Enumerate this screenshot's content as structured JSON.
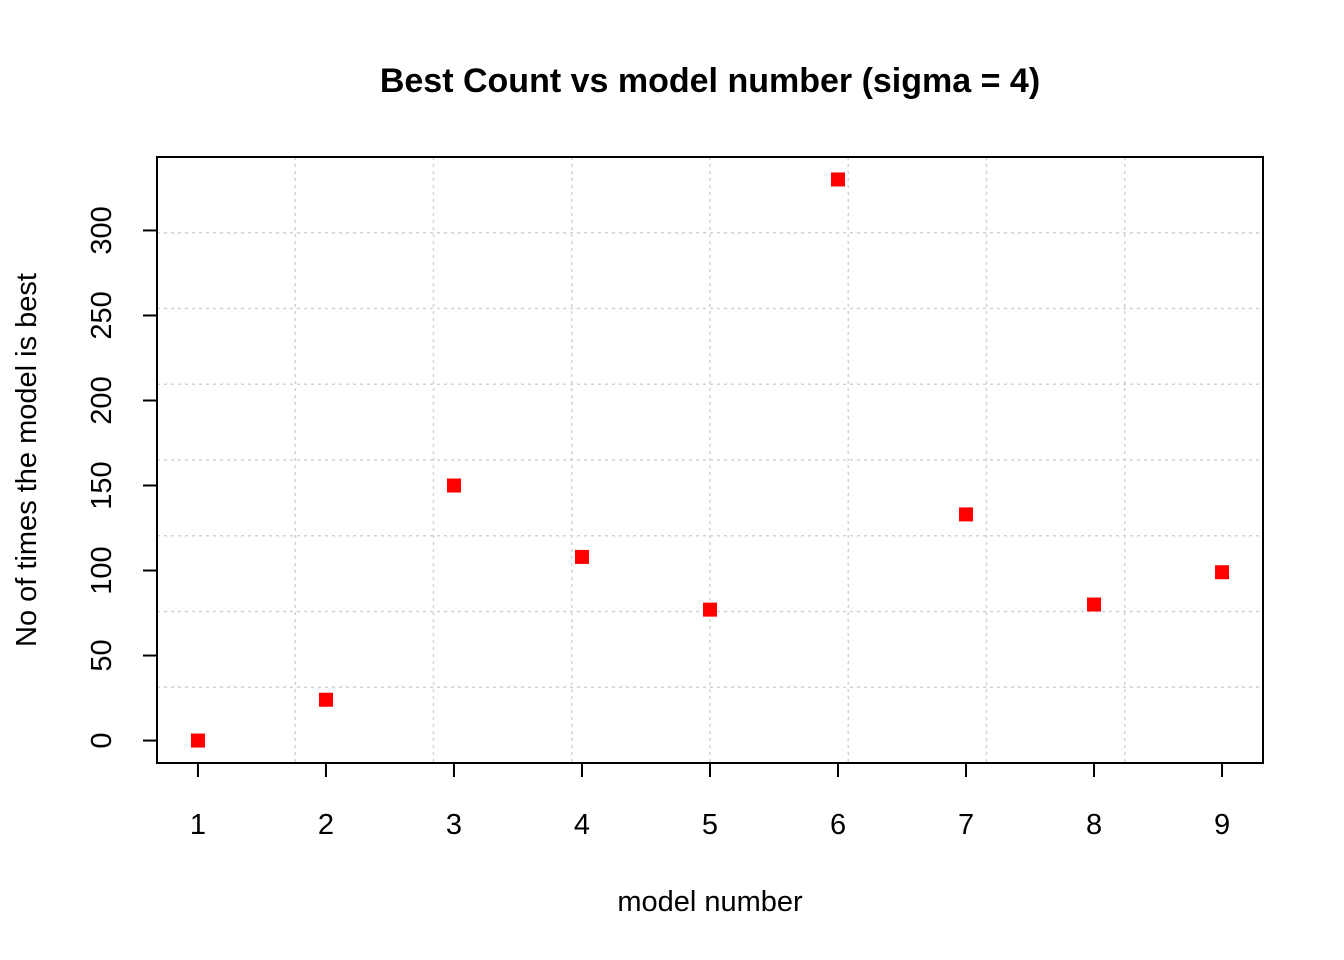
{
  "chart_data": {
    "type": "scatter",
    "title": "Best Count vs model number (sigma = 4)",
    "xlabel": "model number",
    "ylabel": "No of times the model is best",
    "x": [
      1,
      2,
      3,
      4,
      5,
      6,
      7,
      8,
      9
    ],
    "y": [
      0,
      24,
      150,
      108,
      77,
      330,
      133,
      80,
      99
    ],
    "x_ticks": [
      "1",
      "2",
      "3",
      "4",
      "5",
      "6",
      "7",
      "8",
      "9"
    ],
    "y_ticks": [
      "0",
      "50",
      "100",
      "150",
      "200",
      "250",
      "300"
    ],
    "xlim": [
      0.68,
      9.32
    ],
    "ylim": [
      -13.2,
      343.2
    ],
    "grid": true,
    "marker": "square",
    "marker_color": "#ff0000"
  }
}
